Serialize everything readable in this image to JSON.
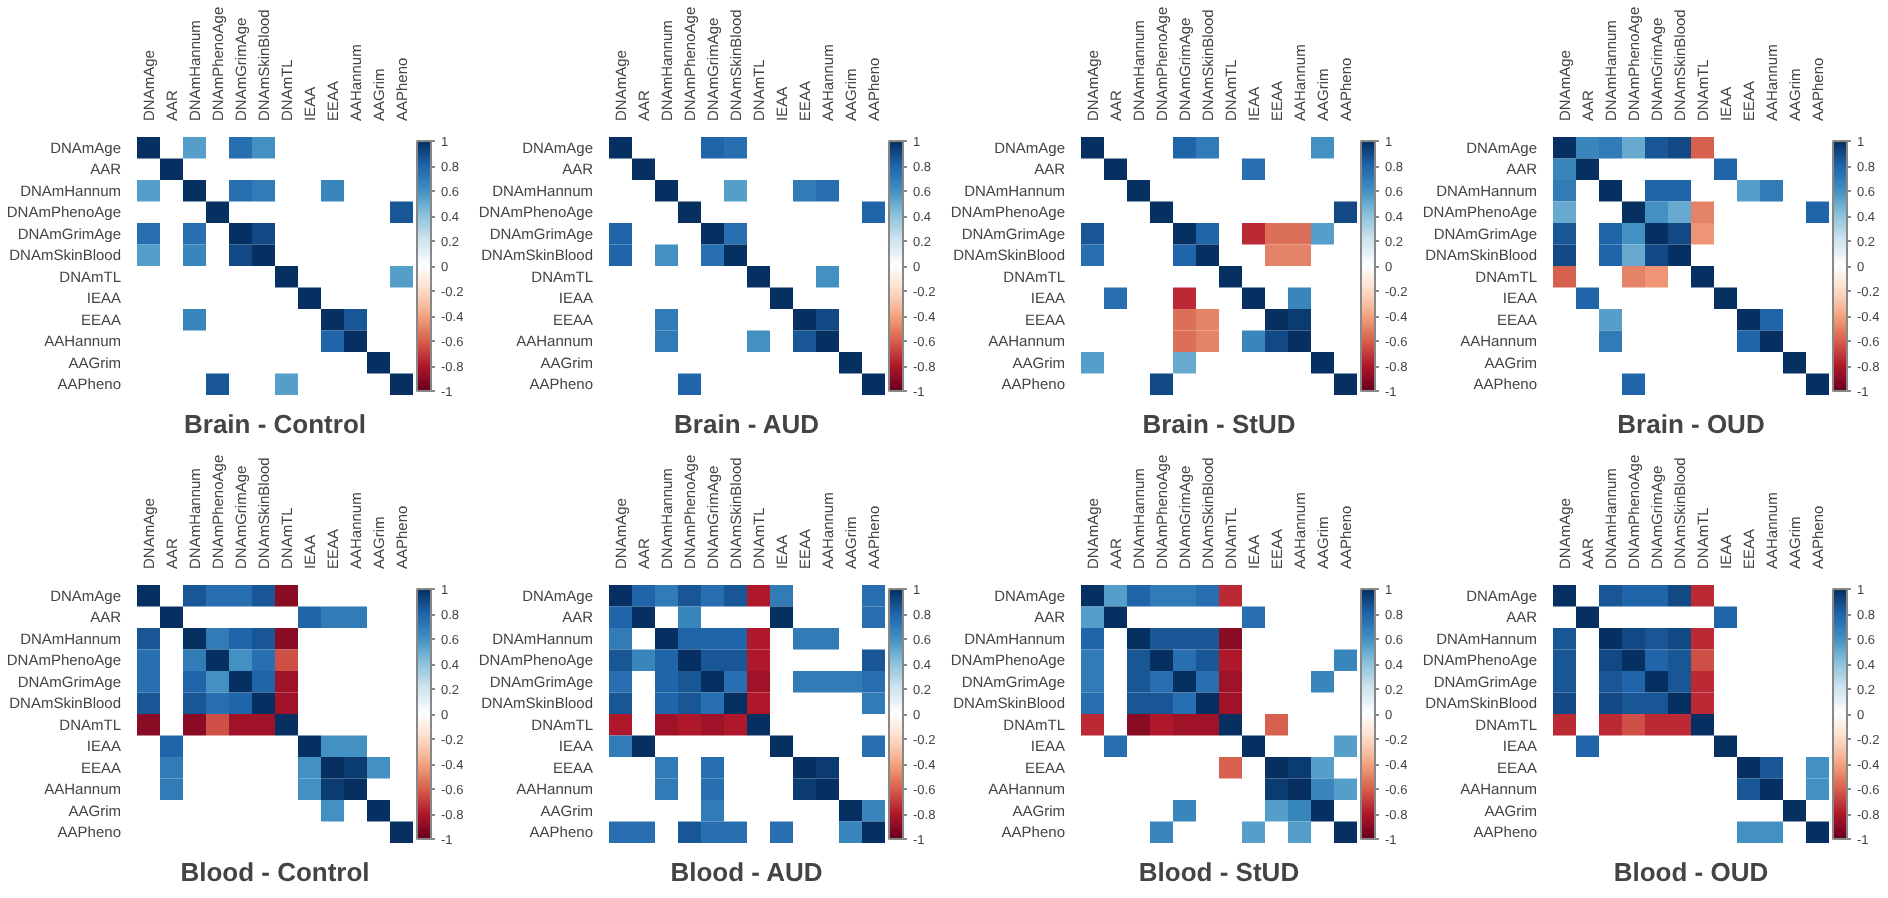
{
  "chart_data": [
    {
      "type": "heatmap",
      "title": "Brain - Control",
      "categories": [
        "DNAmAge",
        "AAR",
        "DNAmHannum",
        "DNAmPhenoAge",
        "DNAmGrimAge",
        "DNAmSkinBlood",
        "DNAmTL",
        "IEAA",
        "EEAA",
        "AAHannum",
        "AAGrim",
        "AAPheno"
      ],
      "y_categories": [
        "DNAmAge",
        "AAR",
        "DNAmHannum",
        "DNAmPhenoAge",
        "DNAmGrimAge",
        "DNAmSkinBlood",
        "DNAmTL",
        "IEAA",
        "EEAA",
        "AAHannum",
        "AAGrim",
        "AAPheno"
      ],
      "clim": [
        -1,
        1
      ],
      "cticks": [
        -1,
        -0.8,
        -0.6,
        -0.4,
        -0.2,
        0,
        0.2,
        0.4,
        0.6,
        0.8,
        1
      ],
      "cells": [
        [
          1,
          null,
          0.55,
          null,
          0.75,
          0.6,
          null,
          null,
          null,
          null,
          null,
          null
        ],
        [
          null,
          1,
          null,
          null,
          null,
          null,
          null,
          null,
          null,
          null,
          null,
          null
        ],
        [
          0.55,
          null,
          1,
          null,
          0.75,
          0.7,
          null,
          null,
          0.65,
          null,
          null,
          null
        ],
        [
          null,
          null,
          null,
          1,
          null,
          null,
          null,
          null,
          null,
          null,
          null,
          0.85
        ],
        [
          0.75,
          null,
          0.75,
          null,
          1,
          0.9,
          null,
          null,
          null,
          null,
          null,
          null
        ],
        [
          0.55,
          null,
          0.65,
          null,
          0.9,
          1,
          null,
          null,
          null,
          null,
          null,
          null
        ],
        [
          null,
          null,
          null,
          null,
          null,
          null,
          1,
          null,
          null,
          null,
          null,
          0.55
        ],
        [
          null,
          null,
          null,
          null,
          null,
          null,
          null,
          1,
          null,
          null,
          null,
          null
        ],
        [
          null,
          null,
          0.65,
          null,
          null,
          null,
          null,
          null,
          1,
          0.85,
          null,
          null
        ],
        [
          null,
          null,
          null,
          null,
          null,
          null,
          null,
          null,
          0.8,
          1,
          null,
          null
        ],
        [
          null,
          null,
          null,
          null,
          null,
          null,
          null,
          null,
          null,
          null,
          1,
          null
        ],
        [
          null,
          null,
          null,
          0.85,
          null,
          null,
          0.55,
          null,
          null,
          null,
          null,
          1
        ]
      ]
    },
    {
      "type": "heatmap",
      "title": "Brain - AUD",
      "categories": [
        "DNAmAge",
        "AAR",
        "DNAmHannum",
        "DNAmPhenoAge",
        "DNAmGrimAge",
        "DNAmSkinBlood",
        "DNAmTL",
        "IEAA",
        "EEAA",
        "AAHannum",
        "AAGrim",
        "AAPheno"
      ],
      "y_categories": [
        "DNAmAge",
        "AAR",
        "DNAmHannum",
        "DNAmPhenoAge",
        "DNAmGrimAge",
        "DNAmSkinBlood",
        "DNAmTL",
        "IEAA",
        "EEAA",
        "AAHannum",
        "AAGrim",
        "AAPheno"
      ],
      "clim": [
        -1,
        1
      ],
      "cticks": [
        -1,
        -0.8,
        -0.6,
        -0.4,
        -0.2,
        0,
        0.2,
        0.4,
        0.6,
        0.8,
        1
      ],
      "cells": [
        [
          1,
          null,
          null,
          null,
          0.8,
          0.75,
          null,
          null,
          null,
          null,
          null,
          null
        ],
        [
          null,
          1,
          null,
          null,
          null,
          null,
          null,
          null,
          null,
          null,
          null,
          null
        ],
        [
          null,
          null,
          1,
          null,
          null,
          0.55,
          null,
          null,
          0.7,
          0.75,
          null,
          null
        ],
        [
          null,
          null,
          null,
          1,
          null,
          null,
          null,
          null,
          null,
          null,
          null,
          0.8
        ],
        [
          0.8,
          null,
          null,
          null,
          1,
          0.75,
          null,
          null,
          null,
          null,
          null,
          null
        ],
        [
          0.8,
          null,
          0.6,
          null,
          0.75,
          1,
          null,
          null,
          null,
          null,
          null,
          null
        ],
        [
          null,
          null,
          null,
          null,
          null,
          null,
          1,
          null,
          null,
          0.6,
          null,
          null
        ],
        [
          null,
          null,
          null,
          null,
          null,
          null,
          null,
          1,
          null,
          null,
          null,
          null
        ],
        [
          null,
          null,
          0.7,
          null,
          null,
          null,
          null,
          null,
          1,
          0.9,
          null,
          null
        ],
        [
          null,
          null,
          0.7,
          null,
          null,
          null,
          0.6,
          null,
          0.85,
          1,
          null,
          null
        ],
        [
          null,
          null,
          null,
          null,
          null,
          null,
          null,
          null,
          null,
          null,
          1,
          null
        ],
        [
          null,
          null,
          null,
          0.8,
          null,
          null,
          null,
          null,
          null,
          null,
          null,
          1
        ]
      ]
    },
    {
      "type": "heatmap",
      "title": "Brain - StUD",
      "categories": [
        "DNAmAge",
        "AAR",
        "DNAmHannum",
        "DNAmPhenoAge",
        "DNAmGrimAge",
        "DNAmSkinBlood",
        "DNAmTL",
        "IEAA",
        "EEAA",
        "AAHannum",
        "AAGrim",
        "AAPheno"
      ],
      "y_categories": [
        "DNAmAge",
        "AAR",
        "DNAmHannum",
        "DNAmPhenoAge",
        "DNAmGrimAge",
        "DNAmSkinBlood",
        "DNAmTL",
        "IEAA",
        "EEAA",
        "AAHannum",
        "AAGrim",
        "AAPheno"
      ],
      "clim": [
        -1,
        1
      ],
      "cticks": [
        -1,
        -0.8,
        -0.6,
        -0.4,
        -0.2,
        0,
        0.2,
        0.4,
        0.6,
        0.8,
        1
      ],
      "cells": [
        [
          1,
          null,
          null,
          null,
          0.8,
          0.7,
          null,
          null,
          null,
          null,
          0.6,
          null
        ],
        [
          null,
          1,
          null,
          null,
          null,
          null,
          null,
          0.75,
          null,
          null,
          null,
          null
        ],
        [
          null,
          null,
          1,
          null,
          null,
          null,
          null,
          null,
          null,
          null,
          null,
          null
        ],
        [
          null,
          null,
          null,
          1,
          null,
          null,
          null,
          null,
          null,
          null,
          null,
          0.9
        ],
        [
          0.85,
          null,
          null,
          null,
          1,
          0.8,
          null,
          -0.75,
          -0.55,
          -0.55,
          0.55,
          null
        ],
        [
          0.75,
          null,
          null,
          null,
          0.8,
          1,
          null,
          null,
          -0.5,
          -0.5,
          null,
          null
        ],
        [
          null,
          null,
          null,
          null,
          null,
          null,
          1,
          null,
          null,
          null,
          null,
          null
        ],
        [
          null,
          0.75,
          null,
          null,
          -0.75,
          null,
          null,
          1,
          null,
          0.65,
          null,
          null
        ],
        [
          null,
          null,
          null,
          null,
          -0.55,
          -0.5,
          null,
          null,
          1,
          0.95,
          null,
          null
        ],
        [
          null,
          null,
          null,
          null,
          -0.55,
          -0.5,
          null,
          0.65,
          0.9,
          1,
          null,
          null
        ],
        [
          0.55,
          null,
          null,
          null,
          0.5,
          null,
          null,
          null,
          null,
          null,
          1,
          null
        ],
        [
          null,
          null,
          null,
          0.9,
          null,
          null,
          null,
          null,
          null,
          null,
          null,
          1
        ]
      ]
    },
    {
      "type": "heatmap",
      "title": "Brain - OUD",
      "categories": [
        "DNAmAge",
        "AAR",
        "DNAmHannum",
        "DNAmPhenoAge",
        "DNAmGrimAge",
        "DNAmSkinBlood",
        "DNAmTL",
        "IEAA",
        "EEAA",
        "AAHannum",
        "AAGrim",
        "AAPheno"
      ],
      "y_categories": [
        "DNAmAge",
        "AAR",
        "DNAmHannum",
        "DNAmPhenoAge",
        "DNAmGrimAge",
        "DNAmSkinBlood",
        "DNAmTL",
        "IEAA",
        "EEAA",
        "AAHannum",
        "AAGrim",
        "AAPheno"
      ],
      "clim": [
        -1,
        1
      ],
      "cticks": [
        -1,
        -0.8,
        -0.6,
        -0.4,
        -0.2,
        0,
        0.2,
        0.4,
        0.6,
        0.8,
        1
      ],
      "cells": [
        [
          1,
          0.65,
          0.7,
          0.5,
          0.85,
          0.9,
          -0.6,
          null,
          null,
          null,
          null,
          null
        ],
        [
          0.65,
          1,
          null,
          null,
          null,
          null,
          null,
          0.8,
          null,
          null,
          null,
          null
        ],
        [
          0.7,
          null,
          1,
          null,
          0.8,
          0.8,
          null,
          null,
          0.55,
          0.7,
          null,
          null
        ],
        [
          0.5,
          null,
          null,
          1,
          0.6,
          0.5,
          -0.5,
          null,
          null,
          null,
          null,
          0.8
        ],
        [
          0.85,
          null,
          0.8,
          0.6,
          1,
          0.9,
          -0.45,
          null,
          null,
          null,
          null,
          null
        ],
        [
          0.9,
          null,
          0.8,
          0.5,
          0.9,
          1,
          null,
          null,
          null,
          null,
          null,
          null
        ],
        [
          -0.6,
          null,
          null,
          -0.5,
          -0.45,
          null,
          1,
          null,
          null,
          null,
          null,
          null
        ],
        [
          null,
          0.8,
          null,
          null,
          null,
          null,
          null,
          1,
          null,
          null,
          null,
          null
        ],
        [
          null,
          null,
          0.55,
          null,
          null,
          null,
          null,
          null,
          1,
          0.8,
          null,
          null
        ],
        [
          null,
          null,
          0.7,
          null,
          null,
          null,
          null,
          null,
          0.8,
          1,
          null,
          null
        ],
        [
          null,
          null,
          null,
          null,
          null,
          null,
          null,
          null,
          null,
          null,
          1,
          null
        ],
        [
          null,
          null,
          null,
          0.8,
          null,
          null,
          null,
          null,
          null,
          null,
          null,
          1
        ]
      ]
    },
    {
      "type": "heatmap",
      "title": "Blood - Control",
      "categories": [
        "DNAmAge",
        "AAR",
        "DNAmHannum",
        "DNAmPhenoAge",
        "DNAmGrimAge",
        "DNAmSkinBlood",
        "DNAmTL",
        "IEAA",
        "EEAA",
        "AAHannum",
        "AAGrim",
        "AAPheno"
      ],
      "y_categories": [
        "DNAmAge",
        "AAR",
        "DNAmHannum",
        "DNAmPhenoAge",
        "DNAmGrimAge",
        "DNAmSkinBlood",
        "DNAmTL",
        "IEAA",
        "EEAA",
        "AAHannum",
        "AAGrim",
        "AAPheno"
      ],
      "clim": [
        -1,
        1
      ],
      "cticks": [
        -1,
        -0.8,
        -0.6,
        -0.4,
        -0.2,
        0,
        0.2,
        0.4,
        0.6,
        0.8,
        1
      ],
      "cells": [
        [
          1,
          null,
          0.85,
          0.75,
          0.75,
          0.85,
          -0.9,
          null,
          null,
          null,
          null,
          null
        ],
        [
          null,
          1,
          null,
          null,
          null,
          null,
          null,
          0.8,
          0.7,
          0.7,
          null,
          null
        ],
        [
          0.85,
          null,
          1,
          0.7,
          0.8,
          0.85,
          -0.9,
          null,
          null,
          null,
          null,
          null
        ],
        [
          0.75,
          null,
          0.7,
          1,
          0.6,
          0.75,
          -0.65,
          null,
          null,
          null,
          null,
          null
        ],
        [
          0.75,
          null,
          0.8,
          0.6,
          1,
          0.8,
          -0.85,
          null,
          null,
          null,
          null,
          null
        ],
        [
          0.85,
          null,
          0.85,
          0.75,
          0.8,
          1,
          -0.85,
          null,
          null,
          null,
          null,
          null
        ],
        [
          -0.9,
          null,
          -0.9,
          -0.65,
          -0.85,
          -0.85,
          1,
          null,
          null,
          null,
          null,
          null
        ],
        [
          null,
          0.8,
          null,
          null,
          null,
          null,
          null,
          1,
          0.6,
          0.6,
          null,
          null
        ],
        [
          null,
          0.7,
          null,
          null,
          null,
          null,
          null,
          0.6,
          1,
          0.95,
          0.6,
          null
        ],
        [
          null,
          0.7,
          null,
          null,
          null,
          null,
          null,
          0.6,
          0.95,
          1,
          null,
          null
        ],
        [
          null,
          null,
          null,
          null,
          null,
          null,
          null,
          null,
          0.6,
          null,
          1,
          null
        ],
        [
          null,
          null,
          null,
          null,
          null,
          null,
          null,
          null,
          null,
          null,
          null,
          1
        ]
      ]
    },
    {
      "type": "heatmap",
      "title": "Blood - AUD",
      "categories": [
        "DNAmAge",
        "AAR",
        "DNAmHannum",
        "DNAmPhenoAge",
        "DNAmGrimAge",
        "DNAmSkinBlood",
        "DNAmTL",
        "IEAA",
        "EEAA",
        "AAHannum",
        "AAGrim",
        "AAPheno"
      ],
      "y_categories": [
        "DNAmAge",
        "AAR",
        "DNAmHannum",
        "DNAmPhenoAge",
        "DNAmGrimAge",
        "DNAmSkinBlood",
        "DNAmTL",
        "IEAA",
        "EEAA",
        "AAHannum",
        "AAGrim",
        "AAPheno"
      ],
      "clim": [
        -1,
        1
      ],
      "cticks": [
        -1,
        -0.8,
        -0.6,
        -0.4,
        -0.2,
        0,
        0.2,
        0.4,
        0.6,
        0.8,
        1
      ],
      "cells": [
        [
          1,
          0.8,
          0.7,
          0.85,
          0.75,
          0.85,
          -0.8,
          0.7,
          null,
          null,
          null,
          0.75
        ],
        [
          0.8,
          1,
          null,
          0.65,
          null,
          null,
          null,
          1,
          null,
          null,
          null,
          0.75
        ],
        [
          0.7,
          null,
          1,
          0.8,
          0.8,
          0.8,
          -0.8,
          null,
          0.7,
          0.7,
          null,
          null
        ],
        [
          0.85,
          0.65,
          0.8,
          1,
          0.85,
          0.85,
          -0.8,
          null,
          null,
          null,
          null,
          0.85
        ],
        [
          0.75,
          null,
          0.8,
          0.85,
          1,
          0.75,
          -0.85,
          null,
          0.7,
          0.7,
          0.7,
          0.75
        ],
        [
          0.85,
          null,
          0.8,
          0.85,
          0.75,
          1,
          -0.8,
          null,
          null,
          null,
          null,
          0.7
        ],
        [
          -0.8,
          null,
          -0.85,
          -0.8,
          -0.85,
          -0.8,
          1,
          null,
          null,
          null,
          null,
          null
        ],
        [
          0.7,
          1,
          null,
          null,
          null,
          null,
          null,
          1,
          null,
          null,
          null,
          0.75
        ],
        [
          null,
          null,
          0.7,
          null,
          0.75,
          null,
          null,
          null,
          1,
          0.95,
          null,
          null
        ],
        [
          null,
          null,
          0.7,
          null,
          0.75,
          null,
          null,
          null,
          0.95,
          1,
          null,
          null
        ],
        [
          null,
          null,
          null,
          null,
          0.7,
          null,
          null,
          null,
          null,
          null,
          1,
          0.65
        ],
        [
          0.75,
          0.75,
          null,
          0.85,
          0.75,
          0.75,
          null,
          0.75,
          null,
          null,
          0.65,
          1
        ]
      ]
    },
    {
      "type": "heatmap",
      "title": "Blood - StUD",
      "categories": [
        "DNAmAge",
        "AAR",
        "DNAmHannum",
        "DNAmPhenoAge",
        "DNAmGrimAge",
        "DNAmSkinBlood",
        "DNAmTL",
        "IEAA",
        "EEAA",
        "AAHannum",
        "AAGrim",
        "AAPheno"
      ],
      "y_categories": [
        "DNAmAge",
        "AAR",
        "DNAmHannum",
        "DNAmPhenoAge",
        "DNAmGrimAge",
        "DNAmSkinBlood",
        "DNAmTL",
        "IEAA",
        "EEAA",
        "AAHannum",
        "AAGrim",
        "AAPheno"
      ],
      "clim": [
        -1,
        1
      ],
      "cticks": [
        -1,
        -0.8,
        -0.6,
        -0.4,
        -0.2,
        0,
        0.2,
        0.4,
        0.6,
        0.8,
        1
      ],
      "cells": [
        [
          1,
          0.55,
          0.8,
          0.7,
          0.7,
          0.75,
          -0.75,
          null,
          null,
          null,
          null,
          null
        ],
        [
          0.55,
          1,
          null,
          null,
          null,
          null,
          null,
          0.75,
          null,
          null,
          null,
          null
        ],
        [
          0.8,
          null,
          1,
          0.85,
          0.85,
          0.85,
          -0.9,
          null,
          null,
          null,
          null,
          null
        ],
        [
          0.7,
          null,
          0.85,
          1,
          0.75,
          0.85,
          -0.8,
          null,
          null,
          null,
          null,
          0.65
        ],
        [
          0.7,
          null,
          0.85,
          0.75,
          1,
          0.75,
          -0.85,
          null,
          null,
          null,
          0.65,
          null
        ],
        [
          0.75,
          null,
          0.85,
          0.85,
          0.75,
          1,
          -0.85,
          null,
          null,
          null,
          null,
          null
        ],
        [
          -0.75,
          null,
          -0.9,
          -0.8,
          -0.85,
          -0.85,
          1,
          null,
          -0.6,
          null,
          null,
          null
        ],
        [
          null,
          0.75,
          null,
          null,
          null,
          null,
          null,
          1,
          null,
          null,
          null,
          0.55
        ],
        [
          null,
          null,
          null,
          null,
          null,
          null,
          -0.6,
          null,
          1,
          0.95,
          0.55,
          null
        ],
        [
          null,
          null,
          null,
          null,
          null,
          null,
          null,
          null,
          0.95,
          1,
          0.65,
          0.55
        ],
        [
          null,
          null,
          null,
          null,
          0.65,
          null,
          null,
          null,
          0.55,
          0.65,
          1,
          null
        ],
        [
          null,
          null,
          null,
          0.65,
          null,
          null,
          null,
          0.55,
          null,
          0.55,
          null,
          1
        ]
      ]
    },
    {
      "type": "heatmap",
      "title": "Blood - OUD",
      "categories": [
        "DNAmAge",
        "AAR",
        "DNAmHannum",
        "DNAmPhenoAge",
        "DNAmGrimAge",
        "DNAmSkinBlood",
        "DNAmTL",
        "IEAA",
        "EEAA",
        "AAHannum",
        "AAGrim",
        "AAPheno"
      ],
      "y_categories": [
        "DNAmAge",
        "AAR",
        "DNAmHannum",
        "DNAmPhenoAge",
        "DNAmGrimAge",
        "DNAmSkinBlood",
        "DNAmTL",
        "IEAA",
        "EEAA",
        "AAHannum",
        "AAGrim",
        "AAPheno"
      ],
      "clim": [
        -1,
        1
      ],
      "cticks": [
        -1,
        -0.8,
        -0.6,
        -0.4,
        -0.2,
        0,
        0.2,
        0.4,
        0.6,
        0.8,
        1
      ],
      "cells": [
        [
          1,
          null,
          0.85,
          0.8,
          0.8,
          0.9,
          -0.75,
          null,
          null,
          null,
          null,
          null
        ],
        [
          null,
          1,
          null,
          null,
          null,
          null,
          null,
          0.8,
          null,
          null,
          null,
          null
        ],
        [
          0.85,
          null,
          1,
          0.9,
          0.85,
          0.9,
          -0.75,
          null,
          null,
          null,
          null,
          null
        ],
        [
          0.85,
          null,
          0.9,
          1,
          0.8,
          0.85,
          -0.65,
          null,
          null,
          null,
          null,
          null
        ],
        [
          0.85,
          null,
          0.85,
          0.8,
          1,
          0.85,
          -0.75,
          null,
          null,
          null,
          null,
          null
        ],
        [
          0.9,
          null,
          0.9,
          0.85,
          0.85,
          1,
          -0.75,
          null,
          null,
          null,
          null,
          null
        ],
        [
          -0.75,
          null,
          -0.75,
          -0.65,
          -0.75,
          -0.75,
          1,
          null,
          null,
          null,
          null,
          null
        ],
        [
          null,
          0.8,
          null,
          null,
          null,
          null,
          null,
          1,
          null,
          null,
          null,
          null
        ],
        [
          null,
          null,
          null,
          null,
          null,
          null,
          null,
          null,
          1,
          0.85,
          null,
          0.6
        ],
        [
          null,
          null,
          null,
          null,
          null,
          null,
          null,
          null,
          0.85,
          1,
          null,
          0.6
        ],
        [
          null,
          null,
          null,
          null,
          null,
          null,
          null,
          null,
          null,
          null,
          1,
          null
        ],
        [
          null,
          null,
          null,
          null,
          null,
          null,
          null,
          null,
          0.6,
          0.6,
          null,
          1
        ]
      ]
    }
  ]
}
